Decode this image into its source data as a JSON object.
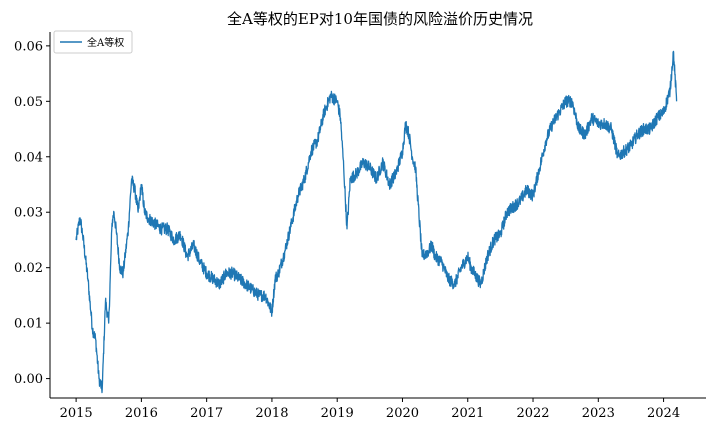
{
  "chart_data": {
    "type": "line",
    "title": "全A等权的EP对10年国债的风险溢价历史情况",
    "xlabel": "",
    "ylabel": "",
    "x_ticks": [
      "2015",
      "2016",
      "2017",
      "2018",
      "2019",
      "2020",
      "2021",
      "2022",
      "2023",
      "2024"
    ],
    "y_ticks": [
      "0.00",
      "0.01",
      "0.02",
      "0.03",
      "0.04",
      "0.05",
      "0.06"
    ],
    "xlim": [
      2014.6,
      2024.65
    ],
    "ylim": [
      -0.0035,
      0.0625
    ],
    "grid": false,
    "legend_position": "top-left",
    "series": [
      {
        "name": "全A等权",
        "color": "#1f77b4",
        "x": [
          2015.0,
          2015.06,
          2015.1,
          2015.18,
          2015.25,
          2015.3,
          2015.35,
          2015.4,
          2015.45,
          2015.5,
          2015.55,
          2015.58,
          2015.62,
          2015.67,
          2015.72,
          2015.75,
          2015.8,
          2015.85,
          2015.9,
          2015.95,
          2016.0,
          2016.05,
          2016.1,
          2016.2,
          2016.3,
          2016.4,
          2016.5,
          2016.6,
          2016.7,
          2016.8,
          2016.9,
          2017.0,
          2017.1,
          2017.2,
          2017.3,
          2017.4,
          2017.5,
          2017.6,
          2017.7,
          2017.8,
          2017.9,
          2018.0,
          2018.05,
          2018.1,
          2018.2,
          2018.3,
          2018.4,
          2018.5,
          2018.6,
          2018.7,
          2018.8,
          2018.9,
          2019.0,
          2019.05,
          2019.1,
          2019.15,
          2019.2,
          2019.3,
          2019.4,
          2019.5,
          2019.6,
          2019.7,
          2019.8,
          2019.9,
          2020.0,
          2020.05,
          2020.1,
          2020.15,
          2020.2,
          2020.3,
          2020.4,
          2020.45,
          2020.5,
          2020.6,
          2020.7,
          2020.8,
          2020.9,
          2021.0,
          2021.05,
          2021.1,
          2021.2,
          2021.3,
          2021.4,
          2021.5,
          2021.6,
          2021.7,
          2021.8,
          2021.9,
          2022.0,
          2022.1,
          2022.2,
          2022.3,
          2022.4,
          2022.5,
          2022.6,
          2022.7,
          2022.8,
          2022.9,
          2023.0,
          2023.1,
          2023.2,
          2023.3,
          2023.4,
          2023.5,
          2023.6,
          2023.7,
          2023.8,
          2023.9,
          2024.0,
          2024.05,
          2024.1,
          2024.15,
          2024.2
        ],
        "y": [
          0.025,
          0.029,
          0.026,
          0.018,
          0.009,
          0.007,
          0.0,
          -0.002,
          0.014,
          0.01,
          0.028,
          0.03,
          0.026,
          0.02,
          0.019,
          0.022,
          0.027,
          0.036,
          0.034,
          0.03,
          0.035,
          0.03,
          0.029,
          0.028,
          0.027,
          0.027,
          0.025,
          0.026,
          0.022,
          0.024,
          0.021,
          0.019,
          0.018,
          0.017,
          0.019,
          0.019,
          0.018,
          0.017,
          0.016,
          0.015,
          0.015,
          0.012,
          0.018,
          0.019,
          0.023,
          0.028,
          0.033,
          0.036,
          0.041,
          0.043,
          0.048,
          0.051,
          0.05,
          0.047,
          0.038,
          0.027,
          0.036,
          0.037,
          0.039,
          0.038,
          0.036,
          0.039,
          0.035,
          0.037,
          0.041,
          0.046,
          0.044,
          0.04,
          0.038,
          0.022,
          0.023,
          0.024,
          0.022,
          0.021,
          0.018,
          0.017,
          0.02,
          0.022,
          0.02,
          0.019,
          0.017,
          0.022,
          0.025,
          0.026,
          0.03,
          0.031,
          0.032,
          0.034,
          0.033,
          0.038,
          0.043,
          0.046,
          0.048,
          0.05,
          0.05,
          0.045,
          0.044,
          0.047,
          0.046,
          0.046,
          0.045,
          0.04,
          0.041,
          0.042,
          0.044,
          0.045,
          0.045,
          0.047,
          0.048,
          0.05,
          0.052,
          0.059,
          0.05
        ]
      }
    ]
  }
}
